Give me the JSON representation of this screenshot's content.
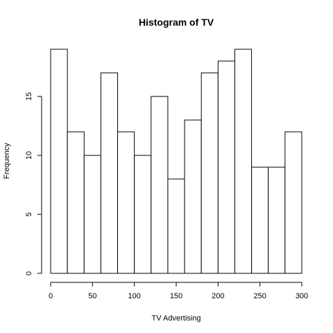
{
  "chart_data": {
    "type": "bar",
    "title": "Histogram of TV",
    "xlabel": "TV Advertising",
    "ylabel": "Frequency",
    "bins": [
      [
        0,
        20
      ],
      [
        20,
        40
      ],
      [
        40,
        60
      ],
      [
        60,
        80
      ],
      [
        80,
        100
      ],
      [
        100,
        120
      ],
      [
        120,
        140
      ],
      [
        140,
        160
      ],
      [
        160,
        180
      ],
      [
        180,
        200
      ],
      [
        200,
        220
      ],
      [
        220,
        240
      ],
      [
        240,
        260
      ],
      [
        260,
        280
      ],
      [
        280,
        300
      ]
    ],
    "values": [
      19,
      12,
      10,
      17,
      12,
      10,
      15,
      8,
      13,
      17,
      18,
      19,
      9,
      9,
      12
    ],
    "xlim": [
      0,
      300
    ],
    "ylim": [
      0,
      19
    ],
    "xticks": [
      0,
      50,
      100,
      150,
      200,
      250,
      300
    ],
    "yticks": [
      0,
      5,
      10,
      15
    ],
    "grid": false
  }
}
